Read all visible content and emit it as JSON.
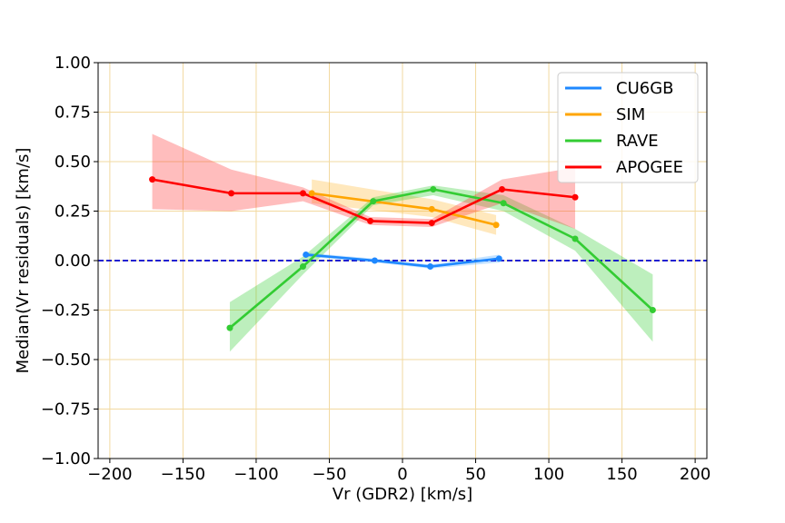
{
  "chart_data": {
    "type": "line",
    "title": "",
    "xlabel": "Vr (GDR2) [km/s]",
    "ylabel": "Median(Vr residuals) [km/s]",
    "xlim": [
      -208,
      208
    ],
    "ylim": [
      -1.0,
      1.0
    ],
    "xticks": [
      -200,
      -150,
      -100,
      -50,
      0,
      50,
      100,
      150,
      200
    ],
    "xtick_labels": [
      "−200",
      "−150",
      "−100",
      "−50",
      "0",
      "50",
      "100",
      "150",
      "200"
    ],
    "yticks": [
      -1.0,
      -0.75,
      -0.5,
      -0.25,
      0.0,
      0.25,
      0.5,
      0.75,
      1.0
    ],
    "ytick_labels": [
      "−1.00",
      "−0.75",
      "−0.50",
      "−0.25",
      "0.00",
      "0.25",
      "0.50",
      "0.75",
      "1.00"
    ],
    "grid": true,
    "legend_position": "top-right",
    "reference_line": {
      "y": 0.0,
      "color": "#0000cc",
      "style": "dashed"
    },
    "series": [
      {
        "name": "CU6GB",
        "color": "#1e88ff",
        "band_color": "#4aa8ff",
        "x": [
          -66,
          -19,
          19,
          66
        ],
        "y": [
          0.03,
          0.0,
          -0.03,
          0.01
        ],
        "lower": [
          0.02,
          -0.01,
          -0.04,
          -0.01
        ],
        "upper": [
          0.04,
          0.01,
          -0.02,
          0.03
        ]
      },
      {
        "name": "SIM",
        "color": "#ffa500",
        "band_color": "#ffb733",
        "x": [
          -62,
          20,
          64
        ],
        "y": [
          0.34,
          0.26,
          0.18
        ],
        "lower": [
          0.29,
          0.22,
          0.13
        ],
        "upper": [
          0.41,
          0.31,
          0.23
        ]
      },
      {
        "name": "RAVE",
        "color": "#33cc33",
        "band_color": "#33cc33",
        "x": [
          -118,
          -68,
          -20,
          21,
          69,
          118,
          171
        ],
        "y": [
          -0.34,
          -0.03,
          0.3,
          0.36,
          0.29,
          0.11,
          -0.25
        ],
        "lower": [
          -0.46,
          -0.07,
          0.28,
          0.33,
          0.25,
          0.05,
          -0.41
        ],
        "upper": [
          -0.21,
          0.02,
          0.32,
          0.38,
          0.33,
          0.16,
          -0.07
        ]
      },
      {
        "name": "APOGEE",
        "color": "#ff0000",
        "band_color": "#ff3333",
        "x": [
          -171,
          -117,
          -68,
          -22,
          20,
          68,
          118
        ],
        "y": [
          0.41,
          0.34,
          0.34,
          0.2,
          0.19,
          0.36,
          0.32
        ],
        "lower": [
          0.26,
          0.25,
          0.3,
          0.18,
          0.17,
          0.29,
          0.16
        ],
        "upper": [
          0.64,
          0.46,
          0.37,
          0.22,
          0.21,
          0.41,
          0.47
        ]
      }
    ]
  }
}
